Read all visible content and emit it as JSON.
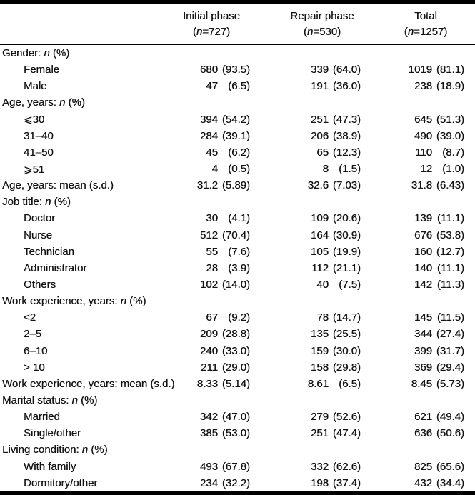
{
  "colors": {
    "background": "#ffffff",
    "text": "#141414",
    "rule": "#000000"
  },
  "table": {
    "header": {
      "columns": [
        {
          "title": "Initial phase",
          "n_pre": "(",
          "n_it": "n",
          "n_post": "=727)"
        },
        {
          "title": "Repair phase",
          "n_pre": "(",
          "n_it": "n",
          "n_post": "=530)"
        },
        {
          "title": "Total",
          "n_pre": "(",
          "n_it": "n",
          "n_post": "=1257)"
        }
      ]
    },
    "rows": [
      {
        "type": "group",
        "pre": "Gender: ",
        "it": "n",
        "post": " (%)"
      },
      {
        "type": "item",
        "label": "Female",
        "cells": [
          {
            "n": "680",
            "pct": "(93.5)"
          },
          {
            "n": "339",
            "pct": "(64.0)"
          },
          {
            "n": "1019",
            "pct": "(81.1)"
          }
        ]
      },
      {
        "type": "item",
        "label": "Male",
        "cells": [
          {
            "n": "47",
            "pct": "(6.5)"
          },
          {
            "n": "191",
            "pct": "(36.0)"
          },
          {
            "n": "238",
            "pct": "(18.9)"
          }
        ]
      },
      {
        "type": "group",
        "pre": "Age, years: ",
        "it": "n",
        "post": " (%)"
      },
      {
        "type": "item",
        "label": "⩽30",
        "cells": [
          {
            "n": "394",
            "pct": "(54.2)"
          },
          {
            "n": "251",
            "pct": "(47.3)"
          },
          {
            "n": "645",
            "pct": "(51.3)"
          }
        ]
      },
      {
        "type": "item",
        "label": "31–40",
        "cells": [
          {
            "n": "284",
            "pct": "(39.1)"
          },
          {
            "n": "206",
            "pct": "(38.9)"
          },
          {
            "n": "490",
            "pct": "(39.0)"
          }
        ]
      },
      {
        "type": "item",
        "label": "41–50",
        "cells": [
          {
            "n": "45",
            "pct": "(6.2)"
          },
          {
            "n": "65",
            "pct": "(12.3)"
          },
          {
            "n": "110",
            "pct": "(8.7)"
          }
        ]
      },
      {
        "type": "item",
        "label": "⩾51",
        "cells": [
          {
            "n": "4",
            "pct": "(0.5)"
          },
          {
            "n": "8",
            "pct": "(1.5)"
          },
          {
            "n": "12",
            "pct": "(1.0)"
          }
        ]
      },
      {
        "type": "lead",
        "pre": "Age, years: mean (s.d.)",
        "it": "",
        "post": "",
        "cells": [
          {
            "n": "31.2",
            "pct": "(5.89)"
          },
          {
            "n": "32.6",
            "pct": "(7.03)"
          },
          {
            "n": "31.8",
            "pct": "(6.43)"
          }
        ]
      },
      {
        "type": "group",
        "pre": "Job title: ",
        "it": "n",
        "post": " (%)"
      },
      {
        "type": "item",
        "label": "Doctor",
        "cells": [
          {
            "n": "30",
            "pct": "(4.1)"
          },
          {
            "n": "109",
            "pct": "(20.6)"
          },
          {
            "n": "139",
            "pct": "(11.1)"
          }
        ]
      },
      {
        "type": "item",
        "label": "Nurse",
        "cells": [
          {
            "n": "512",
            "pct": "(70.4)"
          },
          {
            "n": "164",
            "pct": "(30.9)"
          },
          {
            "n": "676",
            "pct": "(53.8)"
          }
        ]
      },
      {
        "type": "item",
        "label": "Technician",
        "cells": [
          {
            "n": "55",
            "pct": "(7.6)"
          },
          {
            "n": "105",
            "pct": "(19.9)"
          },
          {
            "n": "160",
            "pct": "(12.7)"
          }
        ]
      },
      {
        "type": "item",
        "label": "Administrator",
        "cells": [
          {
            "n": "28",
            "pct": "(3.9)"
          },
          {
            "n": "112",
            "pct": "(21.1)"
          },
          {
            "n": "140",
            "pct": "(11.1)"
          }
        ]
      },
      {
        "type": "item",
        "label": "Others",
        "cells": [
          {
            "n": "102",
            "pct": "(14.0)"
          },
          {
            "n": "40",
            "pct": "(7.5)"
          },
          {
            "n": "142",
            "pct": "(11.3)"
          }
        ]
      },
      {
        "type": "group",
        "pre": "Work experience, years: ",
        "it": "n",
        "post": " (%)"
      },
      {
        "type": "item",
        "label": "<2",
        "cells": [
          {
            "n": "67",
            "pct": "(9.2)"
          },
          {
            "n": "78",
            "pct": "(14.7)"
          },
          {
            "n": "145",
            "pct": "(11.5)"
          }
        ]
      },
      {
        "type": "item",
        "label": "2–5",
        "cells": [
          {
            "n": "209",
            "pct": "(28.8)"
          },
          {
            "n": "135",
            "pct": "(25.5)"
          },
          {
            "n": "344",
            "pct": "(27.4)"
          }
        ]
      },
      {
        "type": "item",
        "label": "6–10",
        "cells": [
          {
            "n": "240",
            "pct": "(33.0)"
          },
          {
            "n": "159",
            "pct": "(30.0)"
          },
          {
            "n": "399",
            "pct": "(31.7)"
          }
        ]
      },
      {
        "type": "item",
        "label": "> 10",
        "cells": [
          {
            "n": "211",
            "pct": "(29.0)"
          },
          {
            "n": "158",
            "pct": "(29.8)"
          },
          {
            "n": "369",
            "pct": "(29.4)"
          }
        ]
      },
      {
        "type": "lead",
        "pre": "Work experience, years: mean (s.d.)",
        "it": "",
        "post": "",
        "cells": [
          {
            "n": "8.33",
            "pct": "(5.14)"
          },
          {
            "n": "8.61",
            "pct": "(6.5)"
          },
          {
            "n": "8.45",
            "pct": "(5.73)"
          }
        ]
      },
      {
        "type": "group",
        "pre": "Marital status: ",
        "it": "n",
        "post": " (%)"
      },
      {
        "type": "item",
        "label": "Married",
        "cells": [
          {
            "n": "342",
            "pct": "(47.0)"
          },
          {
            "n": "279",
            "pct": "(52.6)"
          },
          {
            "n": "621",
            "pct": "(49.4)"
          }
        ]
      },
      {
        "type": "item",
        "label": "Single/other",
        "cells": [
          {
            "n": "385",
            "pct": "(53.0)"
          },
          {
            "n": "251",
            "pct": "(47.4)"
          },
          {
            "n": "636",
            "pct": "(50.6)"
          }
        ]
      },
      {
        "type": "group",
        "pre": "Living condition: ",
        "it": "n",
        "post": " (%)"
      },
      {
        "type": "item",
        "label": "With family",
        "cells": [
          {
            "n": "493",
            "pct": "(67.8)"
          },
          {
            "n": "332",
            "pct": "(62.6)"
          },
          {
            "n": "825",
            "pct": "(65.6)"
          }
        ]
      },
      {
        "type": "item",
        "label": "Dormitory/other",
        "cells": [
          {
            "n": "234",
            "pct": "(32.2)"
          },
          {
            "n": "198",
            "pct": "(37.4)"
          },
          {
            "n": "432",
            "pct": "(34.4)"
          }
        ]
      }
    ]
  }
}
